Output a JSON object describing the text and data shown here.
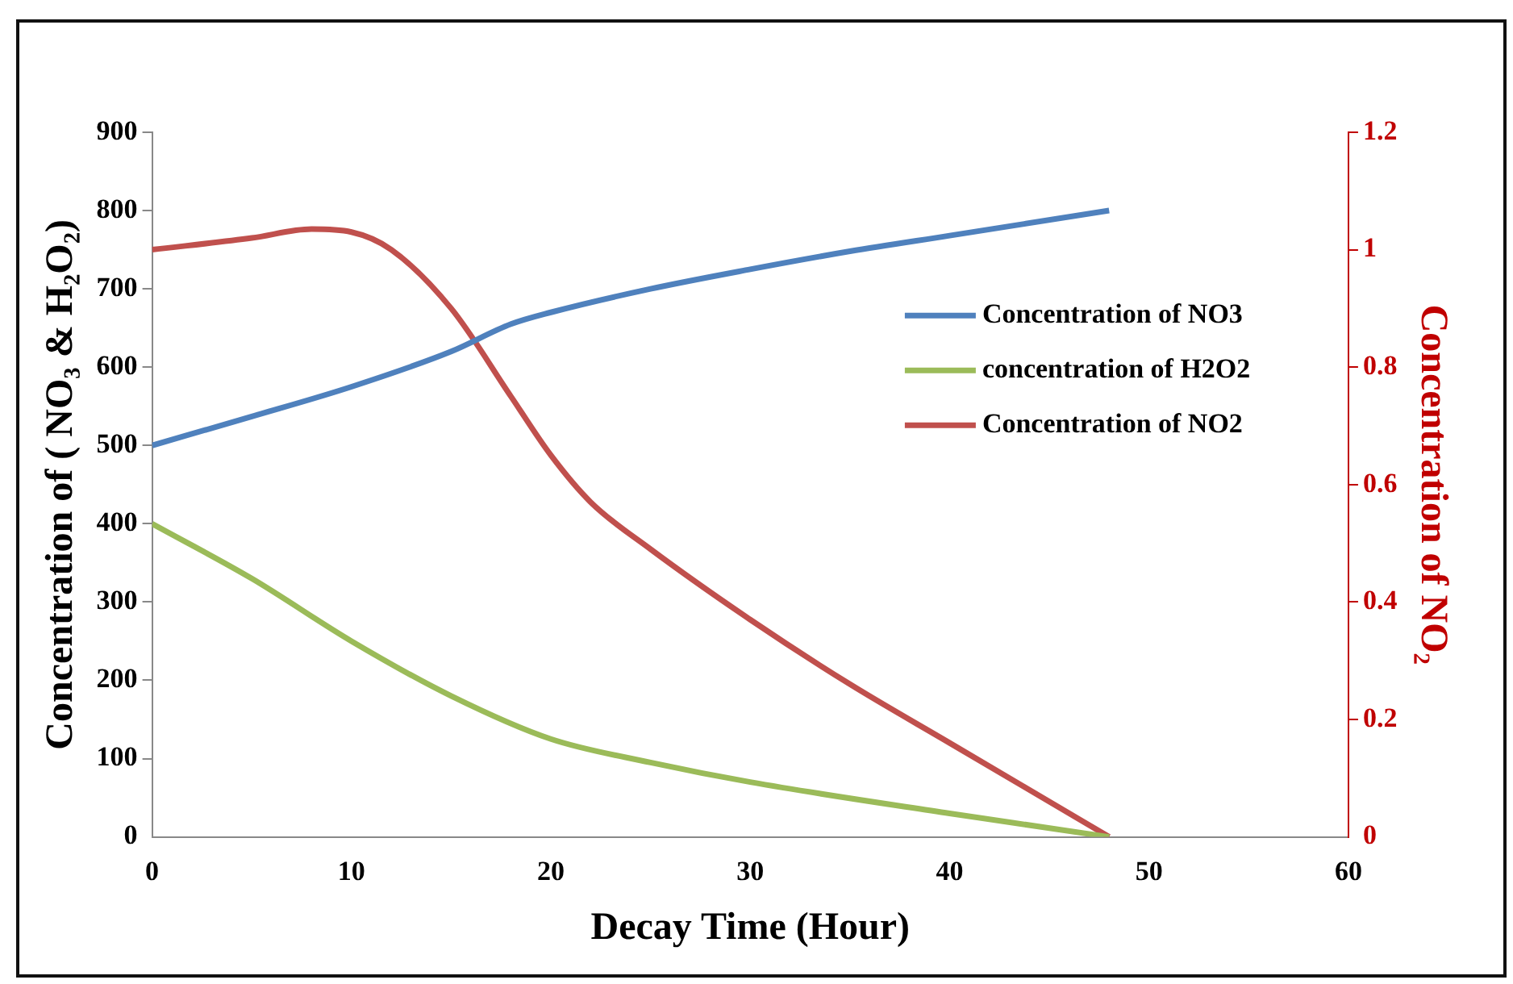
{
  "chart_data": {
    "type": "line",
    "xlabel": "Decay Time (Hour)",
    "ylabel": "Concentration of ( NO₃ & H₂O₂)",
    "y2label": "Concentration of NO₂",
    "xlim": [
      0,
      60
    ],
    "xticks": [
      0,
      10,
      20,
      30,
      40,
      50,
      60
    ],
    "ylim": [
      0,
      900
    ],
    "yticks": [
      0,
      100,
      200,
      300,
      400,
      500,
      600,
      700,
      800,
      900
    ],
    "y2lim": [
      0,
      1.2
    ],
    "y2ticks": [
      0,
      0.2,
      0.4,
      0.6,
      0.8,
      1,
      1.2
    ],
    "grid": false,
    "legend": "right",
    "marker": "none",
    "series": [
      {
        "name": "Concentration of NO3",
        "color": "#4f81bd",
        "x": [
          0,
          5,
          10,
          15,
          18,
          20,
          25,
          30,
          35,
          40,
          48
        ],
        "values": [
          500,
          537,
          575,
          620,
          655,
          670,
          700,
          725,
          748,
          768,
          800
        ]
      },
      {
        "name": "concentration of H2O2",
        "color": "#9bbb59",
        "x": [
          0,
          5,
          10,
          15,
          20,
          25,
          30,
          40,
          48
        ],
        "values": [
          400,
          330,
          250,
          180,
          125,
          95,
          70,
          30,
          0
        ]
      },
      {
        "name": "Concentration of NO2",
        "color": "#c0504d",
        "axis": "y2",
        "x": [
          0,
          5,
          8,
          10,
          12,
          15,
          18,
          20,
          22,
          25,
          30,
          35,
          40,
          48
        ],
        "values": [
          1.0,
          1.02,
          1.035,
          1.03,
          1.0,
          0.9,
          0.75,
          0.65,
          0.57,
          0.49,
          0.37,
          0.26,
          0.16,
          0
        ]
      }
    ]
  }
}
